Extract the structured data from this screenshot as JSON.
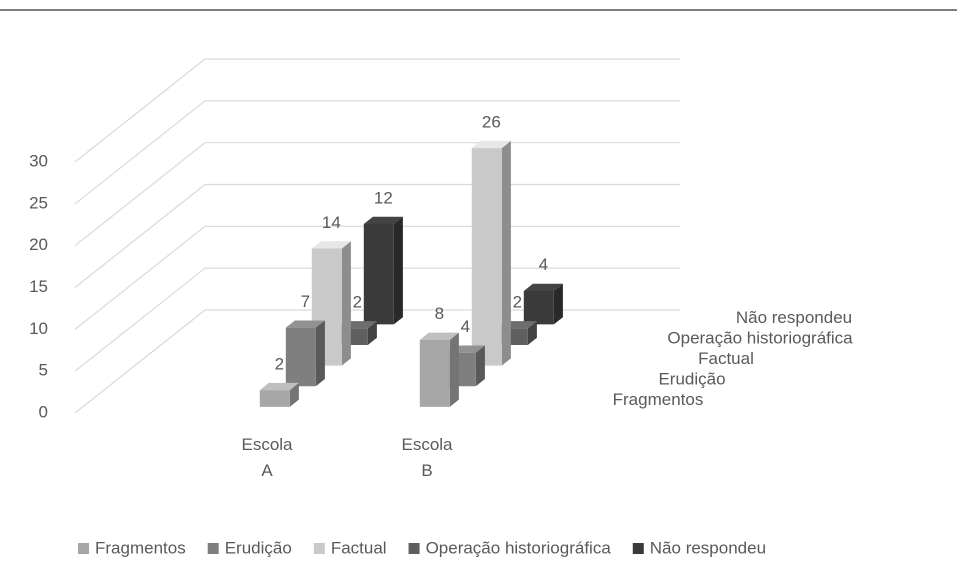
{
  "chart_data": {
    "type": "bar3d",
    "categories": [
      "Escola A",
      "Escola B"
    ],
    "series": [
      {
        "name": "Fragmentos",
        "color": "#a6a6a6",
        "values": [
          2,
          8
        ]
      },
      {
        "name": "Erudição",
        "color": "#7f7f7f",
        "values": [
          7,
          4
        ]
      },
      {
        "name": "Factual",
        "color": "#c9c9c9",
        "values": [
          14,
          26
        ]
      },
      {
        "name": "Operação historiográfica",
        "color": "#5f5f5f",
        "values": [
          2,
          2
        ]
      },
      {
        "name": "Não respondeu",
        "color": "#3a3a3a",
        "values": [
          12,
          4
        ]
      }
    ],
    "ylim": [
      0,
      30
    ],
    "yticks": [
      0,
      5,
      10,
      15,
      20,
      25,
      30
    ],
    "grid": true,
    "legend": "bottom"
  }
}
